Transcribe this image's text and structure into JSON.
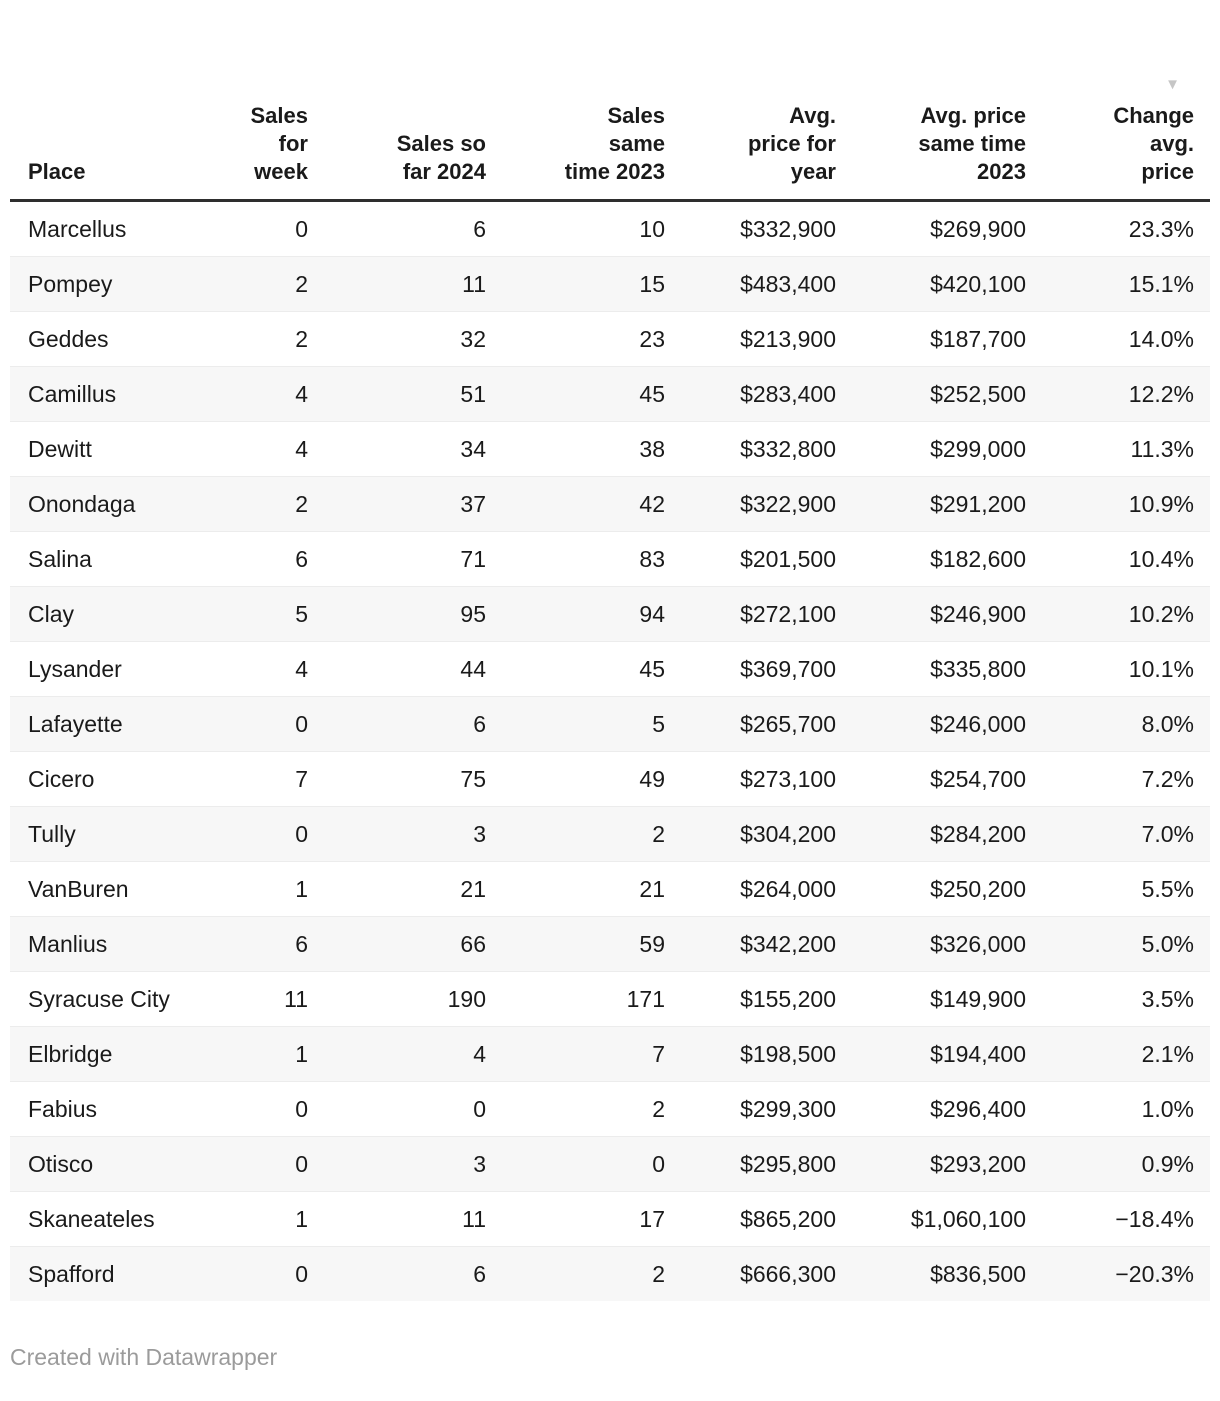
{
  "chart_data": {
    "type": "table",
    "columns": [
      "Place",
      "Sales\nfor\nweek",
      "Sales so\nfar 2024",
      "Sales\nsame\ntime 2023",
      "Avg.\nprice for\nyear",
      "Avg. price\nsame time\n2023",
      "Change\navg.\nprice"
    ],
    "rows": [
      [
        "Marcellus",
        "0",
        "6",
        "10",
        "$332,900",
        "$269,900",
        "23.3%"
      ],
      [
        "Pompey",
        "2",
        "11",
        "15",
        "$483,400",
        "$420,100",
        "15.1%"
      ],
      [
        "Geddes",
        "2",
        "32",
        "23",
        "$213,900",
        "$187,700",
        "14.0%"
      ],
      [
        "Camillus",
        "4",
        "51",
        "45",
        "$283,400",
        "$252,500",
        "12.2%"
      ],
      [
        "Dewitt",
        "4",
        "34",
        "38",
        "$332,800",
        "$299,000",
        "11.3%"
      ],
      [
        "Onondaga",
        "2",
        "37",
        "42",
        "$322,900",
        "$291,200",
        "10.9%"
      ],
      [
        "Salina",
        "6",
        "71",
        "83",
        "$201,500",
        "$182,600",
        "10.4%"
      ],
      [
        "Clay",
        "5",
        "95",
        "94",
        "$272,100",
        "$246,900",
        "10.2%"
      ],
      [
        "Lysander",
        "4",
        "44",
        "45",
        "$369,700",
        "$335,800",
        "10.1%"
      ],
      [
        "Lafayette",
        "0",
        "6",
        "5",
        "$265,700",
        "$246,000",
        "8.0%"
      ],
      [
        "Cicero",
        "7",
        "75",
        "49",
        "$273,100",
        "$254,700",
        "7.2%"
      ],
      [
        "Tully",
        "0",
        "3",
        "2",
        "$304,200",
        "$284,200",
        "7.0%"
      ],
      [
        "VanBuren",
        "1",
        "21",
        "21",
        "$264,000",
        "$250,200",
        "5.5%"
      ],
      [
        "Manlius",
        "6",
        "66",
        "59",
        "$342,200",
        "$326,000",
        "5.0%"
      ],
      [
        "Syracuse City",
        "11",
        "190",
        "171",
        "$155,200",
        "$149,900",
        "3.5%"
      ],
      [
        "Elbridge",
        "1",
        "4",
        "7",
        "$198,500",
        "$194,400",
        "2.1%"
      ],
      [
        "Fabius",
        "0",
        "0",
        "2",
        "$299,300",
        "$296,400",
        "1.0%"
      ],
      [
        "Otisco",
        "0",
        "3",
        "0",
        "$295,800",
        "$293,200",
        "0.9%"
      ],
      [
        "Skaneateles",
        "1",
        "11",
        "17",
        "$865,200",
        "$1,060,100",
        "−18.4%"
      ],
      [
        "Spafford",
        "0",
        "6",
        "2",
        "$666,300",
        "$836,500",
        "−20.3%"
      ]
    ],
    "sort": {
      "column": "Change avg. price",
      "direction": "descending"
    }
  },
  "ui": {
    "sort_icon": "▼",
    "footer_credit": "Created with Datawrapper"
  },
  "colors": {
    "header_text": "#1a1a1a",
    "body_text": "#1a1a1a",
    "header_border": "#2e2e2e",
    "row_alt_bg": "#f7f7f7",
    "row_border": "#ececec",
    "sort_icon": "#c6c6c6",
    "footer_text": "#9b9b9b"
  }
}
